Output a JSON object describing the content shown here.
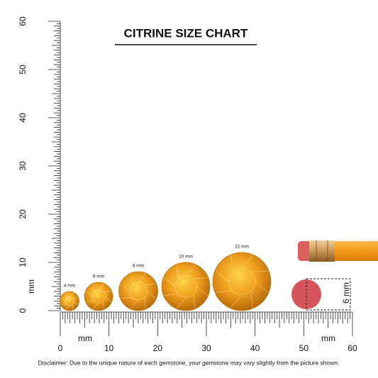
{
  "title": "CITRINE SIZE CHART",
  "vertical_ruler": {
    "labels": [
      0,
      10,
      20,
      30,
      40,
      50,
      60
    ],
    "unit": "mm"
  },
  "horizontal_ruler": {
    "labels": [
      0,
      10,
      20,
      30,
      40,
      50,
      60
    ],
    "unit_left": "mm",
    "unit_right": "mm"
  },
  "gemstones": [
    {
      "label": "4 mm"
    },
    {
      "label": "6 mm"
    },
    {
      "label": "8 mm"
    },
    {
      "label": "10 mm"
    },
    {
      "label": "12 mm"
    }
  ],
  "reference": {
    "label": "6 mm"
  },
  "disclaimer": "Disclaimer: Due to the unique nature of each gemstone, your gemstone may vary slightly from the picture shown."
}
